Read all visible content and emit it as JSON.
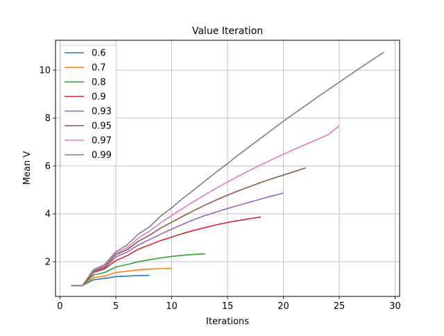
{
  "chart_data": {
    "type": "line",
    "title": "Value Iteration",
    "xlabel": "Iterations",
    "ylabel": "Mean V",
    "xlim": [
      -0.4,
      30.4
    ],
    "ylim": [
      0.55,
      11.25
    ],
    "xticks": [
      0,
      5,
      10,
      15,
      20,
      25,
      30
    ],
    "yticks": [
      2,
      4,
      6,
      8,
      10
    ],
    "grid": true,
    "legend_position": "upper-left",
    "series": [
      {
        "name": "0.6",
        "color": "#1f77b4",
        "x": [
          1,
          2,
          3,
          4,
          5,
          6,
          7,
          8
        ],
        "y": [
          1.0,
          1.0,
          1.25,
          1.3,
          1.38,
          1.4,
          1.42,
          1.43
        ]
      },
      {
        "name": "0.7",
        "color": "#ff7f0e",
        "x": [
          1,
          2,
          3,
          4,
          5,
          6,
          7,
          8,
          9,
          10
        ],
        "y": [
          1.0,
          1.0,
          1.33,
          1.4,
          1.55,
          1.6,
          1.66,
          1.69,
          1.71,
          1.72
        ]
      },
      {
        "name": "0.8",
        "color": "#2ca02c",
        "x": [
          1,
          2,
          3,
          4,
          5,
          6,
          7,
          8,
          9,
          10,
          11,
          12,
          13
        ],
        "y": [
          1.0,
          1.0,
          1.45,
          1.55,
          1.78,
          1.88,
          2.0,
          2.08,
          2.16,
          2.22,
          2.27,
          2.3,
          2.33
        ]
      },
      {
        "name": "0.9",
        "color": "#d62728",
        "x": [
          1,
          2,
          3,
          4,
          5,
          6,
          7,
          8,
          9,
          10,
          11,
          12,
          13,
          14,
          15,
          16,
          17,
          18
        ],
        "y": [
          1.0,
          1.0,
          1.55,
          1.7,
          2.05,
          2.25,
          2.52,
          2.7,
          2.88,
          3.03,
          3.18,
          3.31,
          3.43,
          3.54,
          3.64,
          3.72,
          3.8,
          3.87
        ]
      },
      {
        "name": "0.93",
        "color": "#9467bd",
        "x": [
          1,
          2,
          3,
          4,
          5,
          6,
          7,
          8,
          9,
          10,
          11,
          12,
          13,
          14,
          15,
          16,
          17,
          18,
          19,
          20
        ],
        "y": [
          1.0,
          1.0,
          1.58,
          1.75,
          2.2,
          2.4,
          2.7,
          2.92,
          3.15,
          3.36,
          3.57,
          3.76,
          3.93,
          4.08,
          4.22,
          4.36,
          4.49,
          4.62,
          4.75,
          4.87
        ]
      },
      {
        "name": "0.95",
        "color": "#8c564b",
        "x": [
          1,
          2,
          3,
          4,
          5,
          6,
          7,
          8,
          9,
          10,
          11,
          12,
          13,
          14,
          15,
          16,
          17,
          18,
          19,
          20,
          21,
          22
        ],
        "y": [
          1.0,
          1.0,
          1.6,
          1.78,
          2.3,
          2.5,
          2.85,
          3.1,
          3.4,
          3.65,
          3.9,
          4.14,
          4.37,
          4.58,
          4.78,
          4.97,
          5.14,
          5.31,
          5.47,
          5.62,
          5.77,
          5.92
        ]
      },
      {
        "name": "0.97",
        "color": "#e377c2",
        "x": [
          1,
          2,
          3,
          4,
          5,
          6,
          7,
          8,
          9,
          10,
          11,
          12,
          13,
          14,
          15,
          16,
          17,
          18,
          19,
          20,
          21,
          22,
          23,
          24,
          25
        ],
        "y": [
          1.0,
          1.0,
          1.63,
          1.82,
          2.35,
          2.58,
          2.98,
          3.27,
          3.62,
          3.93,
          4.23,
          4.52,
          4.8,
          5.07,
          5.33,
          5.58,
          5.82,
          6.05,
          6.27,
          6.49,
          6.7,
          6.9,
          7.1,
          7.3,
          7.68
        ]
      },
      {
        "name": "0.99",
        "color": "#7f7f7f",
        "x": [
          1,
          2,
          3,
          4,
          5,
          6,
          7,
          8,
          9,
          10,
          11,
          12,
          13,
          14,
          15,
          16,
          17,
          18,
          19,
          20,
          21,
          22,
          23,
          24,
          25,
          26,
          27,
          28,
          29
        ],
        "y": [
          1.0,
          1.0,
          1.67,
          1.88,
          2.42,
          2.7,
          3.15,
          3.45,
          3.9,
          4.25,
          4.65,
          5.0,
          5.38,
          5.75,
          6.1,
          6.47,
          6.82,
          7.17,
          7.52,
          7.87,
          8.2,
          8.53,
          8.86,
          9.18,
          9.5,
          9.82,
          10.13,
          10.45,
          10.75
        ]
      }
    ]
  }
}
